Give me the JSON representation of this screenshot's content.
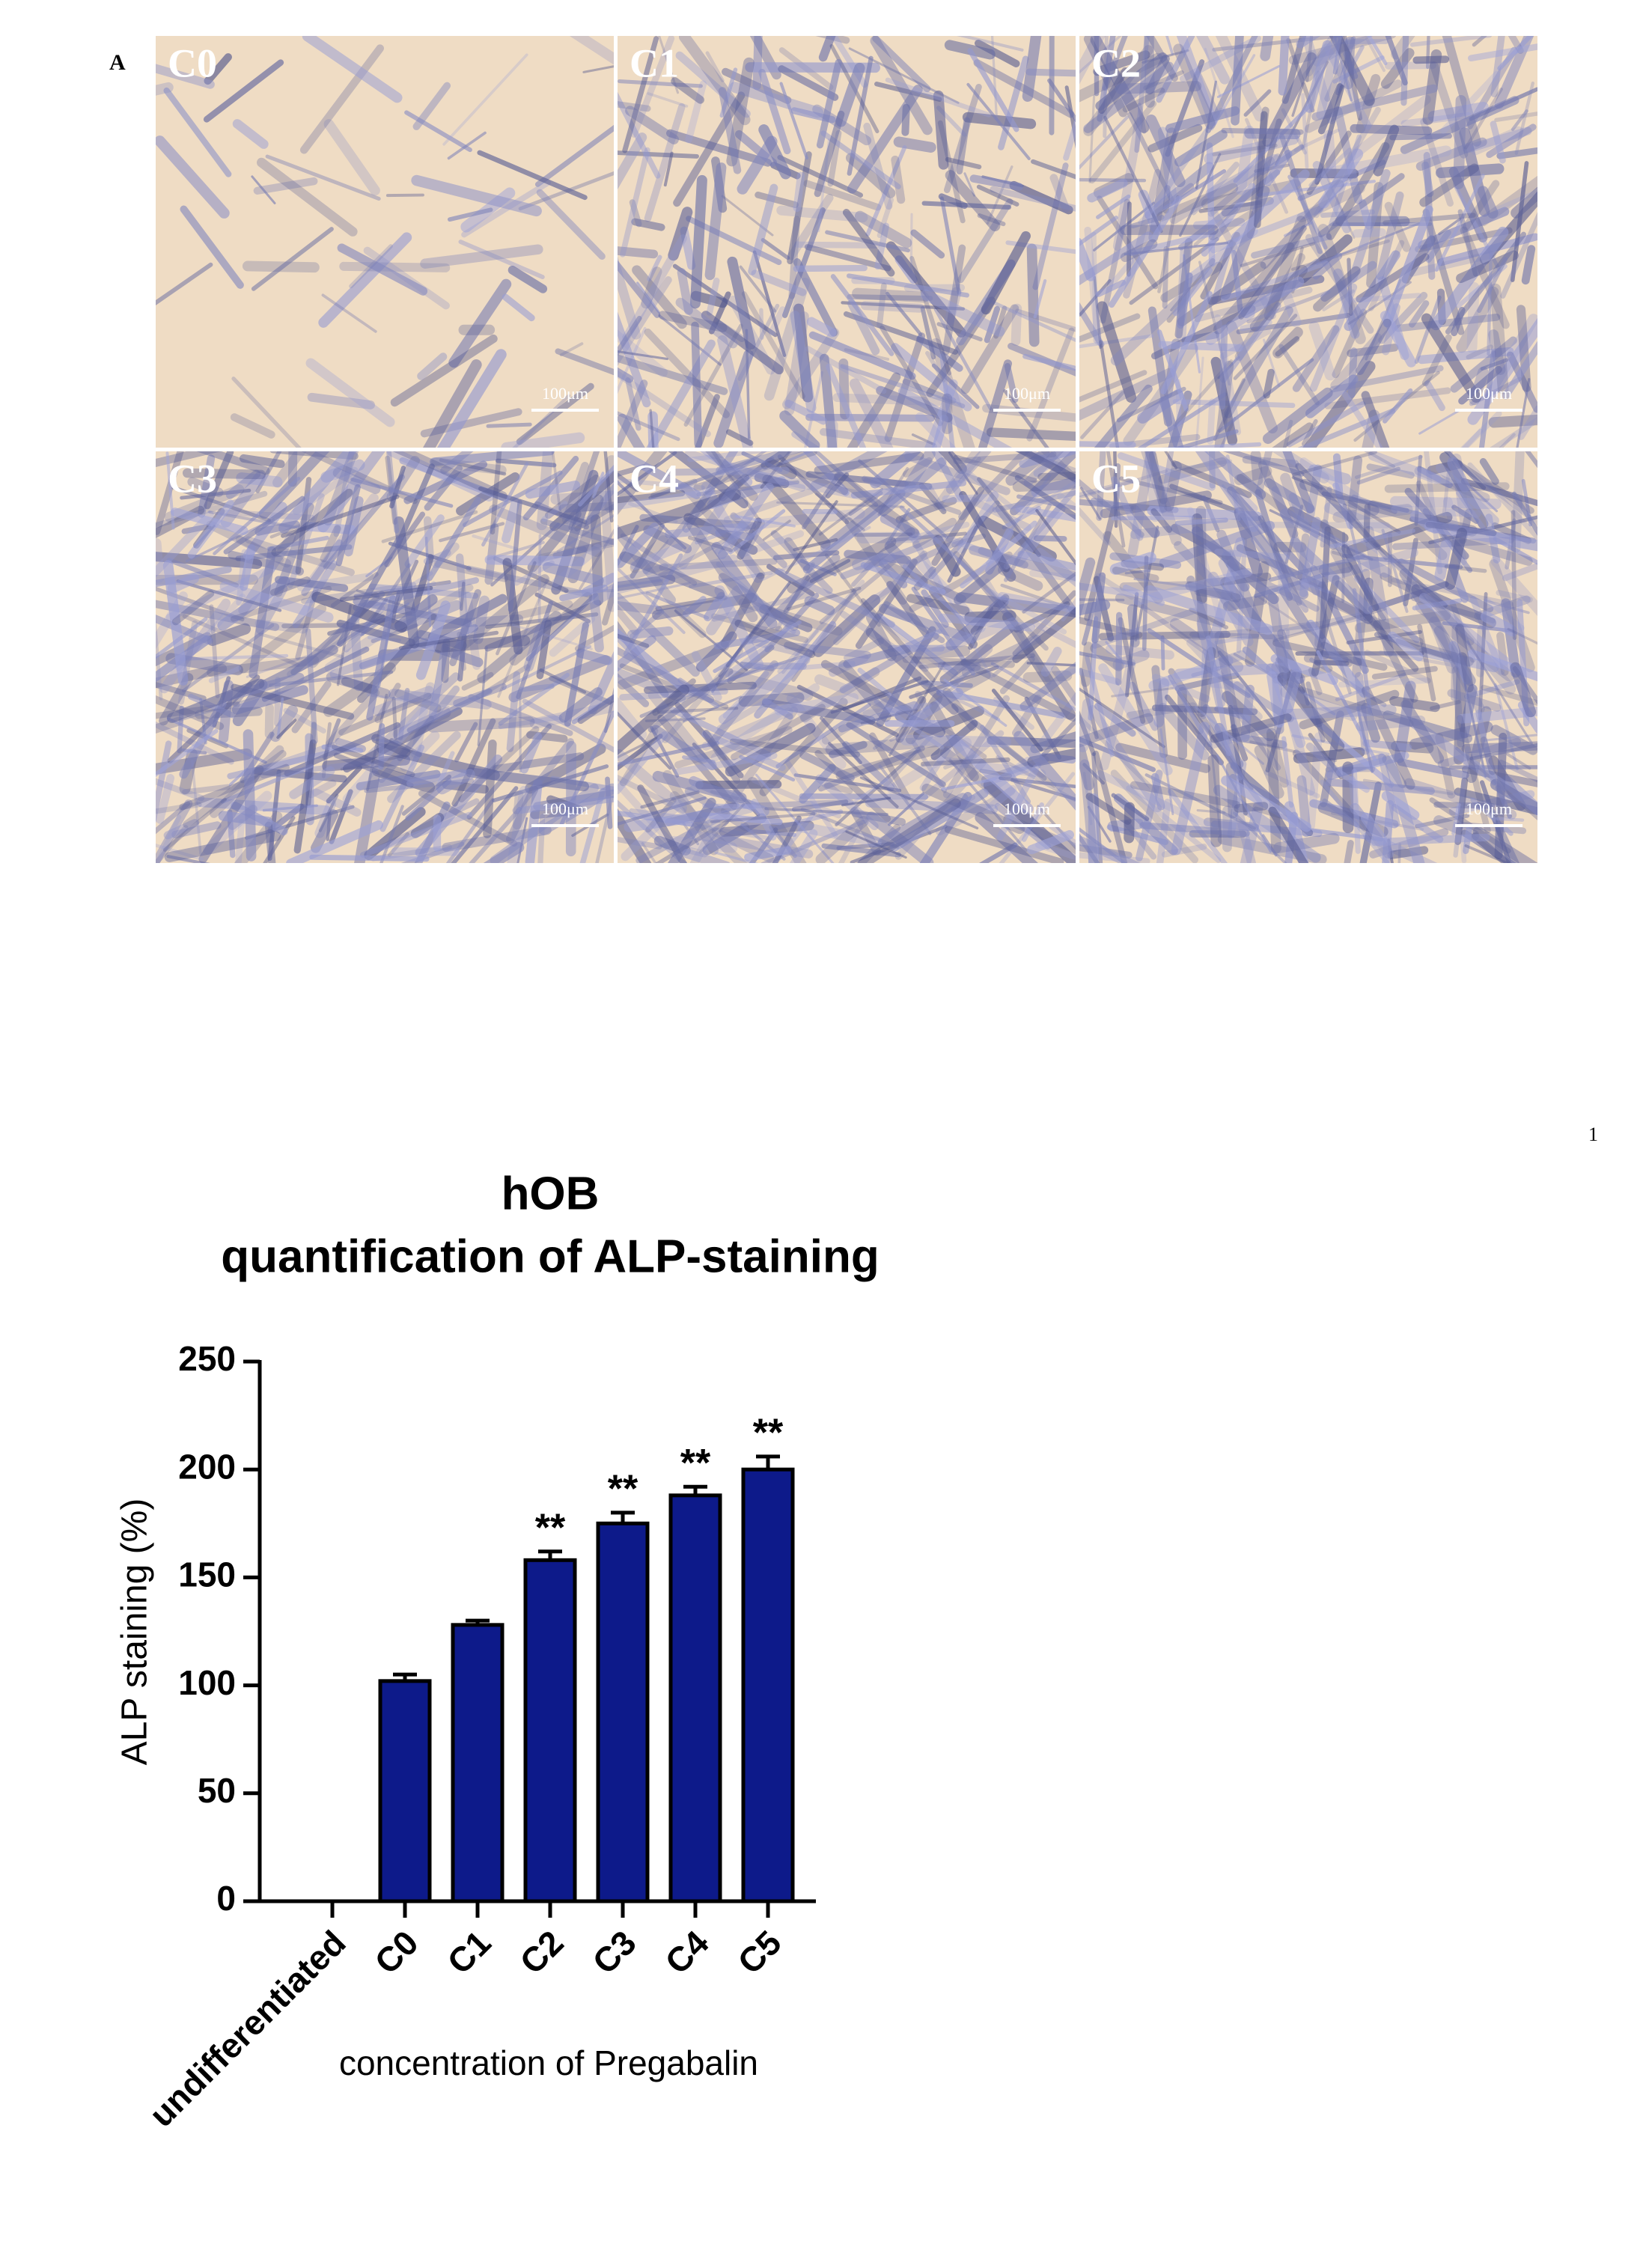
{
  "panel_label": "A",
  "micrographs": [
    {
      "label": "C0",
      "scale_bar": "100μm"
    },
    {
      "label": "C1",
      "scale_bar": "100μm"
    },
    {
      "label": "C2",
      "scale_bar": "100μm"
    },
    {
      "label": "C3",
      "scale_bar": "100μm"
    },
    {
      "label": "C4",
      "scale_bar": "100μm"
    },
    {
      "label": "C5",
      "scale_bar": "100μm"
    }
  ],
  "page_number": "1",
  "chart_data": {
    "type": "bar",
    "title": "hOB",
    "subtitle": "quantification of ALP-staining",
    "y_label": "ALP staining (%)",
    "x_label": "concentration of Pregabalin",
    "categories": [
      "undifferentiated",
      "C0",
      "C1",
      "C2",
      "C3",
      "C4",
      "C5"
    ],
    "values": [
      0,
      102,
      128,
      158,
      175,
      188,
      200
    ],
    "errors": [
      0,
      3,
      2,
      4,
      5,
      4,
      6
    ],
    "significance": [
      null,
      null,
      null,
      "**",
      "**",
      "**",
      "**"
    ],
    "color": "#0d1a8a",
    "ylim": [
      0,
      250
    ],
    "yticks": [
      0,
      50,
      100,
      150,
      200,
      250
    ]
  }
}
